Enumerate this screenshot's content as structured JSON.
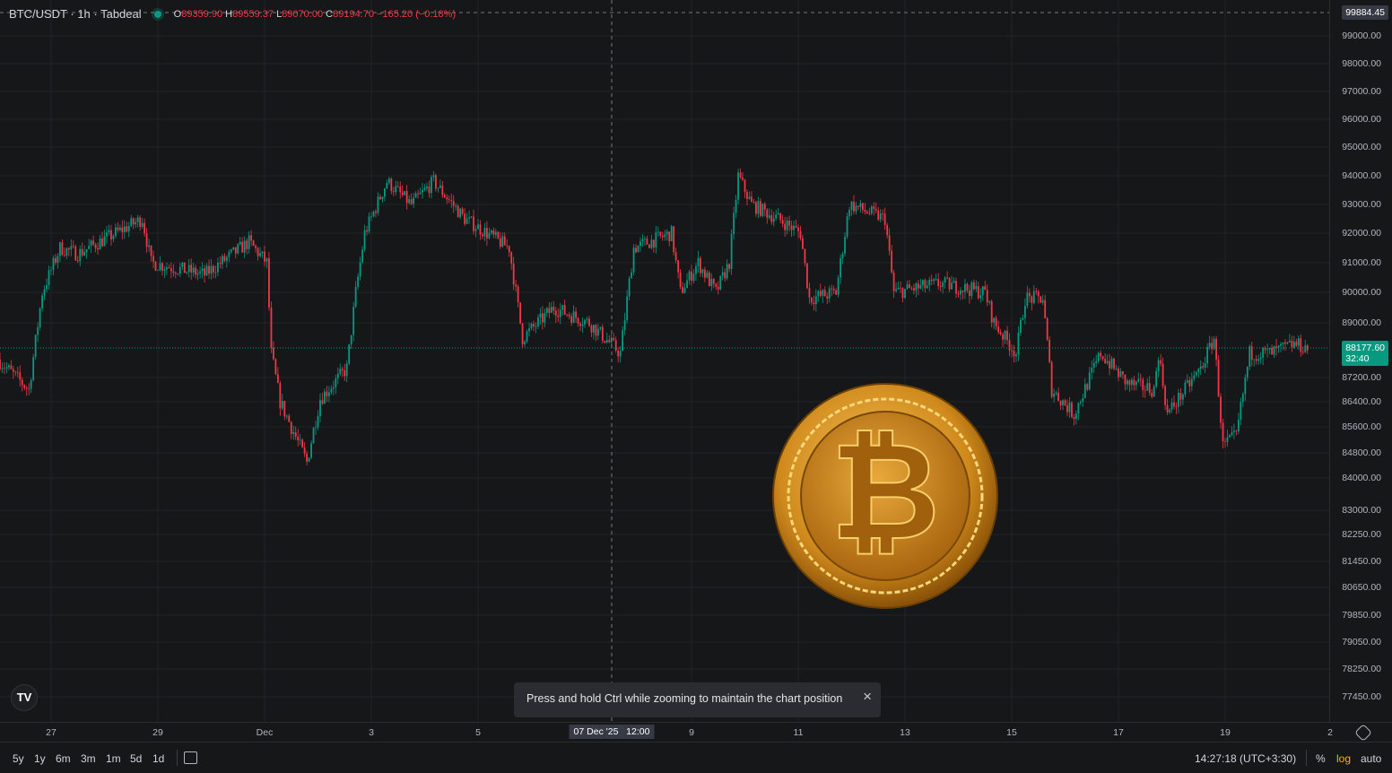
{
  "header": {
    "symbol": "BTC/USDT · 1h · Tabdeal",
    "status_color": "#089981",
    "open_label": "O",
    "open": "89359.90",
    "high_label": "H",
    "high": "89559.37",
    "low_label": "L",
    "low": "89070.00",
    "close_label": "C",
    "close": "89194.70",
    "change": "−165.20 (−0.18%)"
  },
  "price_axis": {
    "labels": [
      "99000.00",
      "98000.00",
      "97000.00",
      "96000.00",
      "95000.00",
      "94000.00",
      "93000.00",
      "92000.00",
      "91000.00",
      "90000.00",
      "89000.00",
      "87200.00",
      "86400.00",
      "85600.00",
      "84800.00",
      "84000.00",
      "83000.00",
      "82250.00",
      "81450.00",
      "80650.00",
      "79850.00",
      "79050.00",
      "78250.00",
      "77450.00"
    ],
    "crosshair_price": "99884.45",
    "last_price": "88177.60",
    "countdown": "32:40",
    "scale": "log"
  },
  "time_axis": {
    "labels": [
      "27",
      "29",
      "Dec",
      "3",
      "5",
      "9",
      "11",
      "13",
      "15",
      "17",
      "19",
      "2"
    ],
    "crosshair_time": "07 Dec '25   12:00"
  },
  "toast": {
    "text": "Press and hold Ctrl while zooming to maintain the chart position",
    "close": "×"
  },
  "bottom": {
    "ranges": [
      "5y",
      "1y",
      "6m",
      "3m",
      "1m",
      "5d",
      "1d"
    ],
    "clock": "14:27:18 (UTC+3:30)",
    "percent": "%",
    "log": "log",
    "auto": "auto"
  },
  "colors": {
    "up": "#089981",
    "down": "#f23645",
    "background": "#161719",
    "log_active": "#f0b90b"
  },
  "chart_data": {
    "type": "candlestick",
    "symbol": "BTC/USDT",
    "interval": "1h",
    "y_scale": "log",
    "price_path": [
      [
        "11-26 01:00",
        87800
      ],
      [
        "11-26 15:00",
        86800
      ],
      [
        "11-26 21:00",
        90000
      ],
      [
        "11-27 05:00",
        91500
      ],
      [
        "11-27 13:00",
        91300
      ],
      [
        "11-28 18:00",
        92500
      ],
      [
        "11-28 22:00",
        91000
      ],
      [
        "11-29 22:00",
        90600
      ],
      [
        "11-30 18:00",
        91700
      ],
      [
        "12-01 02:00",
        91000
      ],
      [
        "12-01 04:00",
        88000
      ],
      [
        "12-01 08:00",
        86400
      ],
      [
        "12-01 20:00",
        84500
      ],
      [
        "12-02 02:00",
        86500
      ],
      [
        "12-02 14:00",
        87500
      ],
      [
        "12-02 18:00",
        90000
      ],
      [
        "12-02 22:00",
        92000
      ],
      [
        "12-03 08:00",
        93800
      ],
      [
        "12-03 19:00",
        93000
      ],
      [
        "12-04 05:00",
        93800
      ],
      [
        "12-04 19:00",
        92500
      ],
      [
        "12-05 05:00",
        92000
      ],
      [
        "12-05 15:00",
        91500
      ],
      [
        "12-05 21:00",
        88500
      ],
      [
        "12-06 11:00",
        89500
      ],
      [
        "12-07 03:00",
        89000
      ],
      [
        "12-07 17:00",
        88000
      ],
      [
        "12-07 23:00",
        91500
      ],
      [
        "12-08 16:00",
        92000
      ],
      [
        "12-08 20:00",
        90000
      ],
      [
        "12-09 04:00",
        91000
      ],
      [
        "12-09 12:00",
        90000
      ],
      [
        "12-09 18:00",
        91000
      ],
      [
        "12-09 22:00",
        94000
      ],
      [
        "12-10 04:00",
        93000
      ],
      [
        "12-10 16:00",
        92500
      ],
      [
        "12-11 02:00",
        92000
      ],
      [
        "12-11 06:00",
        89800
      ],
      [
        "12-11 18:00",
        90000
      ],
      [
        "12-12 00:00",
        93000
      ],
      [
        "12-12 16:00",
        92500
      ],
      [
        "12-12 20:00",
        90000
      ],
      [
        "12-13 17:00",
        90300
      ],
      [
        "12-14 13:00",
        90000
      ],
      [
        "12-14 17:00",
        89000
      ],
      [
        "12-15 03:00",
        88000
      ],
      [
        "12-15 07:00",
        89800
      ],
      [
        "12-15 15:00",
        89800
      ],
      [
        "12-15 19:00",
        86800
      ],
      [
        "12-16 05:00",
        86000
      ],
      [
        "12-16 17:00",
        88000
      ],
      [
        "12-17 05:00",
        87000
      ],
      [
        "12-17 17:00",
        86800
      ],
      [
        "12-17 19:00",
        88000
      ],
      [
        "12-17 23:00",
        86000
      ],
      [
        "12-18 14:00",
        87500
      ],
      [
        "12-18 20:00",
        88500
      ],
      [
        "12-19 00:00",
        85000
      ],
      [
        "12-19 06:00",
        85300
      ],
      [
        "12-19 12:00",
        88000
      ],
      [
        "12-19 22:00",
        88000
      ],
      [
        "12-20 08:00",
        88300
      ],
      [
        "12-20 14:00",
        88177.6
      ]
    ]
  }
}
